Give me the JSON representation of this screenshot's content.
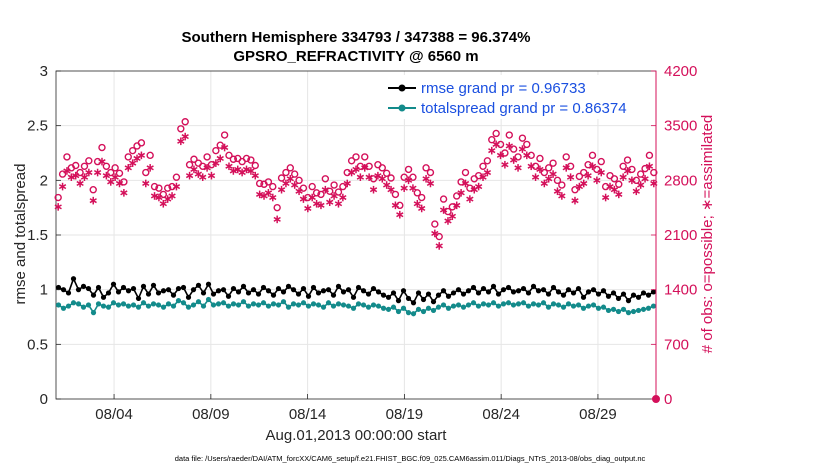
{
  "chart_data": {
    "type": "line",
    "title": "Southern Hemisphere 334793 / 347388 = 96.374%",
    "subtitle": "GPSRO_REFRACTIVITY @ 6560 m",
    "xlabel": "Aug.01,2013 00:00:00 start",
    "ylabel_left": "rmse and totalspread",
    "ylabel_right": "# of obs: o=possible; ∗=assimilated",
    "footer": "data file: /Users/raeder/DAI/ATM_forcXX/CAM6_setup/f.e21.FHIST_BGC.f09_025.CAM6assim.011/Diags_NTrS_2013-08/obs_diag_output.nc",
    "ylim_left": [
      0,
      3
    ],
    "ylim_right": [
      0,
      4200
    ],
    "xlim_days": [
      1,
      32
    ],
    "left_ticks": [
      "0",
      "0.5",
      "1",
      "1.5",
      "2",
      "2.5",
      "3"
    ],
    "right_ticks": [
      "0",
      "700",
      "1400",
      "2100",
      "2800",
      "3500",
      "4200"
    ],
    "x_ticks": [
      {
        "label": "08/04",
        "day": 4
      },
      {
        "label": "08/09",
        "day": 9
      },
      {
        "label": "08/14",
        "day": 14
      },
      {
        "label": "08/19",
        "day": 19
      },
      {
        "label": "08/24",
        "day": 24
      },
      {
        "label": "08/29",
        "day": 29
      }
    ],
    "grid": true,
    "legend_position": "top-right",
    "series": [
      {
        "name": "rmse grand pr = 0.96733",
        "color": "#000000",
        "marker": "dot",
        "values": [
          1.02,
          1.0,
          0.97,
          1.1,
          1.0,
          1.03,
          1.01,
          0.95,
          1.02,
          0.93,
          0.97,
          1.05,
          0.98,
          1.02,
          0.99,
          1.01,
          0.92,
          1.03,
          0.96,
          1.04,
          0.97,
          0.99,
          1.0,
          0.95,
          1.01,
          1.02,
          0.93,
          1.0,
          1.04,
          0.97,
          1.05,
          0.96,
          0.99,
          1.0,
          0.94,
          1.01,
          0.98,
          1.03,
          0.97,
          1.0,
          0.96,
          1.02,
          0.99,
          0.95,
          1.01,
          0.98,
          1.03,
          1.0,
          0.96,
          1.01,
          0.94,
          1.02,
          0.97,
          0.99,
          1.0,
          0.95,
          1.03,
          0.98,
          1.0,
          0.93,
          1.02,
          0.99,
          0.96,
          1.01,
          0.98,
          0.95,
          0.93,
          0.97,
          0.9,
          0.99,
          0.92,
          0.88,
          0.97,
          0.91,
          0.96,
          0.89,
          0.95,
          0.99,
          0.94,
          0.97,
          1.0,
          0.96,
          0.99,
          1.02,
          0.97,
          1.01,
          0.98,
          1.03,
          0.96,
          1.0,
          1.02,
          0.98,
          0.99,
          1.01,
          0.97,
          1.03,
          0.99,
          1.0,
          0.96,
          1.02,
          0.98,
          0.95,
          1.0,
          0.97,
          1.01,
          0.93,
          0.98,
          1.0,
          0.96,
          0.99,
          0.94,
          0.97,
          0.92,
          0.96,
          0.9,
          0.95,
          0.93,
          0.97,
          0.95,
          0.98
        ]
      },
      {
        "name": "totalspread grand pr = 0.86374",
        "color": "#138b8b",
        "marker": "dot",
        "values": [
          0.86,
          0.83,
          0.85,
          0.88,
          0.87,
          0.84,
          0.86,
          0.79,
          0.87,
          0.85,
          0.84,
          0.88,
          0.86,
          0.87,
          0.85,
          0.86,
          0.84,
          0.88,
          0.85,
          0.87,
          0.86,
          0.84,
          0.87,
          0.85,
          0.9,
          0.88,
          0.84,
          0.86,
          0.89,
          0.85,
          0.91,
          0.86,
          0.87,
          0.88,
          0.85,
          0.87,
          0.86,
          0.89,
          0.85,
          0.87,
          0.86,
          0.88,
          0.85,
          0.87,
          0.86,
          0.89,
          0.84,
          0.87,
          0.86,
          0.88,
          0.85,
          0.87,
          0.86,
          0.84,
          0.88,
          0.85,
          0.87,
          0.86,
          0.85,
          0.83,
          0.87,
          0.86,
          0.84,
          0.86,
          0.85,
          0.83,
          0.82,
          0.84,
          0.8,
          0.83,
          0.79,
          0.78,
          0.82,
          0.8,
          0.83,
          0.81,
          0.84,
          0.86,
          0.83,
          0.85,
          0.86,
          0.84,
          0.86,
          0.88,
          0.85,
          0.87,
          0.86,
          0.88,
          0.85,
          0.87,
          0.88,
          0.86,
          0.87,
          0.88,
          0.85,
          0.87,
          0.86,
          0.88,
          0.84,
          0.87,
          0.86,
          0.84,
          0.87,
          0.85,
          0.86,
          0.83,
          0.85,
          0.86,
          0.83,
          0.84,
          0.81,
          0.82,
          0.8,
          0.82,
          0.79,
          0.8,
          0.81,
          0.82,
          0.83,
          0.85
        ]
      }
    ],
    "obs_series": [
      {
        "name": "possible",
        "marker": "o",
        "color": "#d4105a",
        "values": [
          2580,
          2880,
          3100,
          2960,
          2990,
          2900,
          2980,
          3050,
          2680,
          3040,
          3220,
          2980,
          2900,
          2960,
          2890,
          2780,
          3100,
          3180,
          3240,
          3280,
          2900,
          3120,
          2720,
          2700,
          2620,
          2700,
          2720,
          2840,
          3460,
          3550,
          3000,
          3070,
          3020,
          2980,
          3100,
          3000,
          3180,
          3250,
          3380,
          3120,
          3070,
          3080,
          3040,
          3080,
          3060,
          2990,
          2760,
          2750,
          2780,
          2720,
          2450,
          2830,
          2900,
          2960,
          2880,
          2800,
          2700,
          2580,
          2720,
          2640,
          2620,
          2820,
          2660,
          2740,
          2650,
          2720,
          2900,
          3050,
          3100,
          2980,
          3100,
          2980,
          2820,
          3000,
          2960,
          2890,
          2830,
          2620,
          2480,
          2840,
          2940,
          2840,
          2640,
          2580,
          2960,
          2900,
          2240,
          2080,
          2560,
          2400,
          2460,
          2600,
          2780,
          2900,
          2700,
          2820,
          2860,
          2980,
          3050,
          3320,
          3400,
          3260,
          3150,
          3380,
          3200,
          3100,
          3340,
          3260,
          3120,
          2980,
          3080,
          2900,
          2960,
          3020,
          2800,
          2740,
          3100,
          2980,
          2680,
          2850,
          2900,
          3000,
          3120,
          2940,
          3040,
          2720,
          2860,
          2820,
          2750,
          2980,
          3060,
          2940,
          2800,
          2880,
          2950,
          3120,
          2900
        ]
      },
      {
        "name": "assimilated",
        "marker": "*",
        "color": "#d4105a",
        "values": [
          2460,
          2720,
          2920,
          2840,
          2860,
          2760,
          2840,
          2900,
          2540,
          2900,
          3040,
          2860,
          2780,
          2840,
          2760,
          2640,
          2960,
          3020,
          3080,
          3120,
          2760,
          2960,
          2600,
          2580,
          2500,
          2560,
          2600,
          2720,
          3300,
          3360,
          2860,
          2940,
          2880,
          2840,
          2960,
          2860,
          3020,
          3080,
          3220,
          2980,
          2920,
          2940,
          2900,
          2940,
          2920,
          2860,
          2620,
          2600,
          2640,
          2580,
          2300,
          2680,
          2760,
          2820,
          2740,
          2660,
          2560,
          2440,
          2580,
          2500,
          2480,
          2680,
          2520,
          2600,
          2500,
          2580,
          2760,
          2900,
          2940,
          2840,
          2960,
          2840,
          2680,
          2860,
          2820,
          2740,
          2680,
          2480,
          2360,
          2700,
          2800,
          2700,
          2500,
          2440,
          2820,
          2760,
          2120,
          1960,
          2420,
          2280,
          2340,
          2480,
          2640,
          2760,
          2560,
          2680,
          2720,
          2840,
          2900,
          3180,
          3260,
          3120,
          3000,
          3240,
          3060,
          2960,
          3200,
          3120,
          2980,
          2840,
          2940,
          2760,
          2820,
          2880,
          2660,
          2600,
          2960,
          2840,
          2540,
          2720,
          2760,
          2860,
          2980,
          2800,
          2900,
          2580,
          2720,
          2680,
          2620,
          2840,
          2920,
          2800,
          2660,
          2740,
          2820,
          2980,
          2760
        ]
      }
    ]
  }
}
